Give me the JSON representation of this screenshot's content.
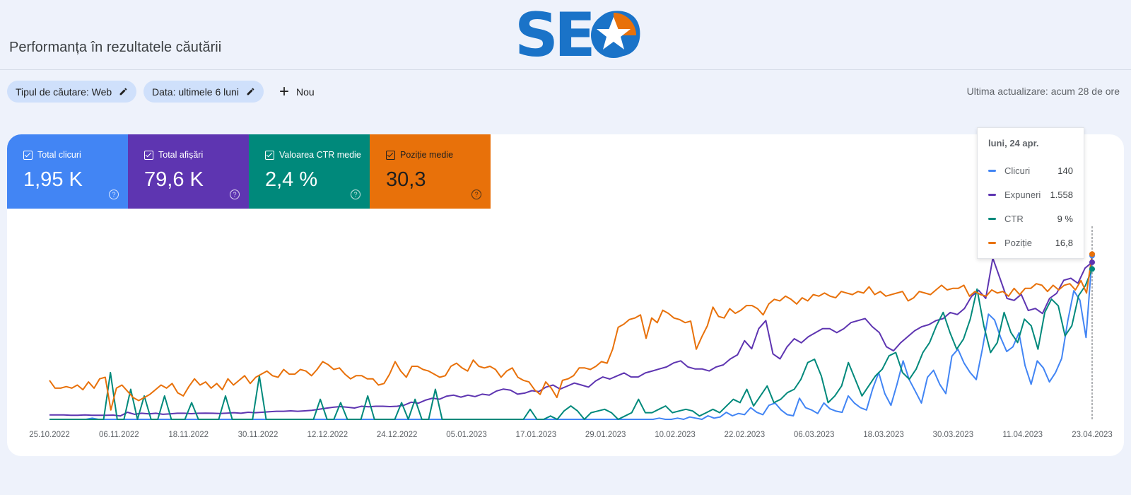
{
  "header": {
    "logo_text": "SEO",
    "page_title": "Performanța în rezultatele căutării"
  },
  "filters": {
    "search_type": "Tipul de căutare: Web",
    "date": "Data: ultimele 6 luni",
    "new_label": "Nou",
    "last_update": "Ultima actualizare: acum 28 de ore"
  },
  "metrics": [
    {
      "label": "Total clicuri",
      "value": "1,95 K",
      "color": "#4285f4"
    },
    {
      "label": "Total afișări",
      "value": "79,6 K",
      "color": "#5e35b1"
    },
    {
      "label": "Valoarea CTR medie",
      "value": "2,4 %",
      "color": "#00897b"
    },
    {
      "label": "Poziție medie",
      "value": "30,3",
      "color": "#e8710a"
    }
  ],
  "tooltip": {
    "date": "luni, 24 apr.",
    "rows": [
      {
        "name": "Clicuri",
        "value": "140",
        "color": "#4285f4"
      },
      {
        "name": "Expuneri",
        "value": "1.558",
        "color": "#5e35b1"
      },
      {
        "name": "CTR",
        "value": "9 %",
        "color": "#00897b"
      },
      {
        "name": "Poziție",
        "value": "16,8",
        "color": "#e8710a"
      }
    ]
  },
  "chart_data": {
    "type": "line",
    "x_ticks": [
      "25.10.2022",
      "06.11.2022",
      "18.11.2022",
      "30.11.2022",
      "12.12.2022",
      "24.12.2022",
      "05.01.2023",
      "17.01.2023",
      "29.01.2023",
      "10.02.2023",
      "22.02.2023",
      "06.03.2023",
      "18.03.2023",
      "30.03.2023",
      "11.04.2023",
      "23.04.2023"
    ],
    "grid": false,
    "axes_shown": false,
    "series": [
      {
        "name": "Clicuri",
        "color": "#4285f4",
        "ylim": [
          0,
          150
        ],
        "values": [
          0,
          0,
          0,
          0,
          0,
          0,
          0,
          1,
          0,
          0,
          0,
          0,
          0,
          0,
          0,
          0,
          0,
          0,
          0,
          0,
          0,
          0,
          0,
          0,
          0,
          0,
          0,
          0,
          0,
          0,
          0,
          0,
          0,
          0,
          0,
          0,
          0,
          0,
          0,
          0,
          0,
          0,
          0,
          0,
          0,
          0,
          0,
          0,
          0,
          0,
          0,
          0,
          0,
          0,
          0,
          0,
          0,
          0,
          0,
          0,
          0,
          0,
          0,
          0,
          0,
          0,
          0,
          0,
          0,
          0,
          0,
          0,
          0,
          0,
          0,
          0,
          0,
          0,
          0,
          0,
          0,
          0,
          0,
          0,
          0,
          0,
          0,
          0,
          0,
          0,
          0,
          0,
          0,
          0,
          0,
          0,
          0,
          0,
          0,
          0,
          1,
          0,
          0,
          1,
          0,
          2,
          1,
          0,
          3,
          1,
          2,
          6,
          3,
          5,
          4,
          10,
          6,
          4,
          12,
          14,
          8,
          4,
          3,
          18,
          10,
          8,
          5,
          14,
          9,
          7,
          6,
          20,
          14,
          10,
          8,
          26,
          40,
          22,
          12,
          30,
          50,
          34,
          24,
          14,
          36,
          42,
          30,
          22,
          54,
          60,
          48,
          40,
          34,
          60,
          90,
          85,
          70,
          58,
          62,
          74,
          46,
          30,
          50,
          44,
          32,
          40,
          52,
          84,
          110,
          102,
          70,
          140
        ]
      },
      {
        "name": "Expuneri",
        "color": "#5e35b1",
        "ylim": [
          0,
          1740
        ],
        "values": [
          44,
          44,
          44,
          40,
          40,
          44,
          40,
          40,
          40,
          42,
          34,
          70,
          50,
          60,
          55,
          60,
          50,
          55,
          60,
          60,
          56,
          60,
          62,
          60,
          58,
          62,
          66,
          60,
          70,
          66,
          70,
          76,
          80,
          80,
          84,
          80,
          84,
          90,
          100,
          110,
          120,
          126,
          120,
          112,
          130,
          124,
          130,
          130,
          126,
          130,
          140,
          170,
          160,
          190,
          210,
          200,
          230,
          240,
          220,
          240,
          226,
          250,
          240,
          280,
          300,
          290,
          250,
          260,
          284,
          276,
          320,
          340,
          300,
          330,
          360,
          340,
          320,
          380,
          420,
          400,
          430,
          460,
          420,
          420,
          460,
          480,
          500,
          520,
          560,
          580,
          520,
          500,
          500,
          480,
          520,
          540,
          600,
          640,
          780,
          700,
          900,
          980,
          650,
          600,
          720,
          800,
          760,
          820,
          860,
          900,
          900,
          860,
          900,
          960,
          980,
          1000,
          920,
          860,
          720,
          680,
          760,
          820,
          880,
          920,
          940,
          980,
          1000,
          1060,
          1040,
          1100,
          1220,
          1280,
          1200,
          1600,
          1400,
          1200,
          1180,
          1240,
          1080,
          1100,
          1050,
          1200,
          1250,
          1380,
          1400,
          1350,
          1500,
          1558
        ]
      },
      {
        "name": "CTR",
        "color": "#00897b",
        "ylim": [
          0,
          10.5
        ],
        "values": [
          0,
          0,
          0,
          0,
          0,
          0,
          0,
          0,
          0,
          2.8,
          0,
          0,
          1.8,
          0,
          1.4,
          0,
          0,
          1.4,
          0,
          0,
          0,
          1.0,
          0,
          0,
          0,
          0,
          1.4,
          0,
          0,
          0,
          0,
          2.6,
          0,
          0,
          0,
          0,
          0,
          0,
          0,
          0,
          1.2,
          0,
          0,
          1.0,
          0,
          0,
          0,
          1.4,
          0,
          0,
          0,
          0,
          1.0,
          0,
          1.2,
          0,
          0,
          1.8,
          0,
          0,
          0,
          0,
          0,
          0,
          0,
          0,
          0,
          0,
          0,
          0,
          0,
          0.6,
          0,
          0,
          0.2,
          0,
          0.5,
          0.8,
          0.5,
          0,
          0.4,
          0.5,
          0.6,
          0.4,
          0,
          0.2,
          0.4,
          1.2,
          0.4,
          0.4,
          0.6,
          0.8,
          0.4,
          0.5,
          0.6,
          0.5,
          0.2,
          0.4,
          0.6,
          0.4,
          0.8,
          1.2,
          1.0,
          1.8,
          0.8,
          1.4,
          2.0,
          1.0,
          1.2,
          1.6,
          1.8,
          2.4,
          3.4,
          3.6,
          2.6,
          1.0,
          1.4,
          2.0,
          3.4,
          2.4,
          1.4,
          2.0,
          2.6,
          3.0,
          3.8,
          4.0,
          2.8,
          2.4,
          3.0,
          4.0,
          4.6,
          5.6,
          6.4,
          5.2,
          4.2,
          4.8,
          6.0,
          7.8,
          5.6,
          4.0,
          4.6,
          6.4,
          5.2,
          4.6,
          6.0,
          5.6,
          4.2,
          6.4,
          7.2,
          6.8,
          5.0,
          5.6,
          7.4,
          8.0,
          9.0
        ]
      },
      {
        "name": "Poziție",
        "color": "#e8710a",
        "ylim": [
          38,
          15.5
        ],
        "inverted": true,
        "values": [
          33.0,
          34.0,
          34.0,
          33.8,
          34.0,
          33.6,
          34.2,
          33.2,
          34.0,
          32.8,
          32.6,
          36.8,
          34.0,
          33.6,
          34.4,
          35.2,
          35.6,
          35.2,
          34.8,
          34.2,
          33.6,
          34.0,
          33.4,
          34.6,
          35.0,
          33.8,
          32.8,
          33.6,
          33.2,
          34.0,
          33.4,
          34.2,
          32.8,
          33.6,
          33.0,
          32.4,
          33.4,
          32.6,
          32.2,
          31.8,
          32.4,
          32.6,
          31.6,
          32.2,
          32.2,
          31.6,
          31.8,
          32.4,
          31.6,
          30.6,
          31.0,
          31.6,
          31.4,
          32.2,
          32.8,
          32.4,
          32.4,
          32.8,
          32.8,
          33.6,
          33.4,
          32.2,
          30.6,
          31.8,
          32.6,
          31.2,
          31.2,
          31.6,
          31.8,
          32.2,
          32.6,
          32.4,
          31.2,
          30.8,
          31.4,
          31.8,
          30.4,
          31.2,
          31.4,
          31.2,
          31.6,
          32.6,
          31.8,
          31.4,
          32.6,
          33.0,
          33.2,
          34.2,
          34.8,
          33.2,
          34.0,
          35.2,
          33.0,
          32.8,
          32.4,
          31.4,
          31.4,
          31.6,
          31.2,
          30.6,
          30.8,
          29.0,
          26.2,
          25.8,
          25.2,
          25.0,
          24.6,
          27.6,
          25.0,
          25.6,
          24.0,
          24.4,
          25.0,
          25.2,
          25.6,
          25.4,
          29.0,
          27.4,
          26.0,
          23.6,
          24.8,
          25.0,
          23.8,
          24.4,
          24.0,
          23.4,
          23.4,
          23.8,
          24.6,
          23.2,
          22.6,
          22.8,
          22.2,
          22.6,
          23.2,
          22.4,
          22.8,
          22.0,
          22.2,
          21.8,
          22.2,
          22.4,
          21.6,
          21.8,
          22.0,
          21.6,
          21.8,
          21.0,
          22.0,
          21.6,
          22.2,
          22.0,
          21.8,
          21.6,
          22.8,
          22.4,
          21.6,
          21.8,
          22.0,
          21.4,
          20.8,
          21.4,
          21.2,
          21.2,
          20.8,
          22.2,
          21.6,
          22.0,
          22.2,
          21.4,
          21.8,
          21.6,
          22.2,
          21.2,
          22.0,
          21.2,
          21.2,
          20.6,
          20.8,
          21.6,
          20.8,
          21.4,
          20.8,
          20.6,
          21.4,
          20.2,
          21.8,
          16.8
        ]
      }
    ]
  }
}
